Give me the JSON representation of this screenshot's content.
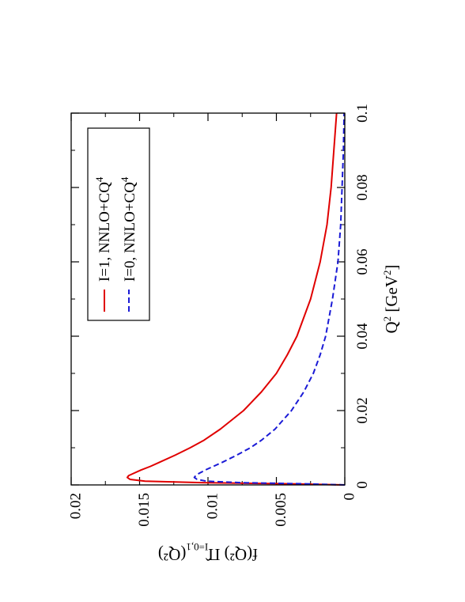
{
  "chart_data": {
    "type": "line",
    "orientation": "rotated-90-ccw",
    "xlabel": "Q",
    "xlabel_sup": "2",
    "xlabel_unit_open": " [GeV",
    "xlabel_unit_sup": "2",
    "xlabel_unit_close": "]",
    "ylabel": "f(Q²) Π̂",
    "ylabel_sub": "I=0,1",
    "ylabel_tail": "(Q²)",
    "xlim": [
      0,
      0.1
    ],
    "ylim": [
      0,
      0.02
    ],
    "x_ticks": [
      "0",
      "0.02",
      "0.04",
      "0.06",
      "0.08",
      "0.1"
    ],
    "y_ticks": [
      "0",
      "0.005",
      "0.01",
      "0.015",
      "0.02"
    ],
    "grid": false,
    "legend_position": "top-left",
    "series": [
      {
        "name": "I=1, NNLO+CQ",
        "name_sup": "4",
        "color": "#e00000",
        "dash": "solid",
        "x": [
          0,
          0.0003,
          0.0006,
          0.001,
          0.0015,
          0.002,
          0.0025,
          0.003,
          0.004,
          0.005,
          0.006,
          0.008,
          0.01,
          0.012,
          0.015,
          0.02,
          0.025,
          0.03,
          0.035,
          0.04,
          0.05,
          0.06,
          0.07,
          0.08,
          0.09,
          0.1
        ],
        "y": [
          0,
          0.004,
          0.0105,
          0.0146,
          0.0157,
          0.0159,
          0.0158,
          0.0155,
          0.0149,
          0.0142,
          0.0136,
          0.0124,
          0.0113,
          0.0103,
          0.0091,
          0.0074,
          0.0061,
          0.005,
          0.0042,
          0.0035,
          0.0025,
          0.0018,
          0.0013,
          0.001,
          0.0008,
          0.0006
        ]
      },
      {
        "name": "I=0, NNLO+CQ",
        "name_sup": "4",
        "color": "#1a1ad6",
        "dash": "dashed",
        "x": [
          0,
          0.0003,
          0.0006,
          0.001,
          0.0015,
          0.002,
          0.0025,
          0.003,
          0.004,
          0.005,
          0.006,
          0.008,
          0.01,
          0.012,
          0.015,
          0.02,
          0.025,
          0.03,
          0.035,
          0.04,
          0.05,
          0.06,
          0.07,
          0.08,
          0.09,
          0.1
        ],
        "y": [
          0,
          0.003,
          0.0075,
          0.0101,
          0.0108,
          0.011,
          0.0109,
          0.0107,
          0.0102,
          0.0096,
          0.009,
          0.0079,
          0.0069,
          0.0061,
          0.0051,
          0.0039,
          0.003,
          0.0023,
          0.0018,
          0.0014,
          0.0009,
          0.0005,
          0.0003,
          0.0002,
          0.0001,
          5e-05
        ]
      }
    ]
  }
}
